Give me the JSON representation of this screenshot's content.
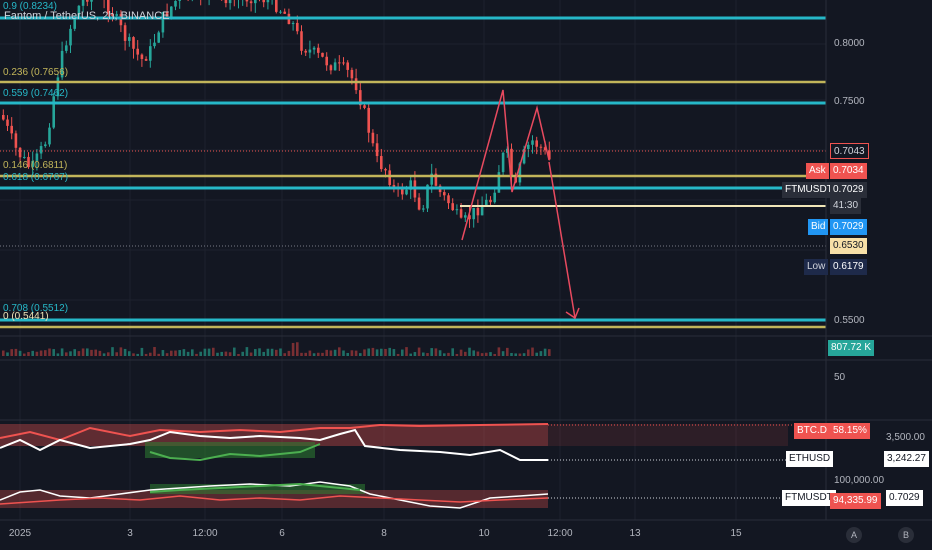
{
  "header": {
    "title": "Fantom / TetherUS, 2h, BINANCE"
  },
  "fib_labels": {
    "f09": "0.9 (0.8234)",
    "f0236": "0.236 (0.7656)",
    "f0559": "0.559 (0.7462)",
    "f0146": "0.146 (0.6811)",
    "f0618": "0.618 (0.6767)",
    "f0708": "0.708 (0.5512)",
    "f0": "0 (0.5441)"
  },
  "price_axis": {
    "ticks": [
      "0.8000",
      "0.7500",
      "0.5500"
    ],
    "last_price": "0.7043",
    "ask_label": "Ask",
    "ask_value": "0.7034",
    "symbol": "FTMUSDT",
    "symbol_price": "0.7029",
    "countdown": "41:30",
    "bid_label": "Bid",
    "bid_value": "0.7029",
    "level_value": "0.6530",
    "low_label": "Low",
    "low_value": "0.6179"
  },
  "volume": {
    "label": "807.72 K"
  },
  "rsi": {
    "tick": "50"
  },
  "compare": {
    "btcd_label": "BTC.D",
    "btcd_value": "58.15%",
    "eth_axis": "3,500.00",
    "eth_label": "ETHUSD",
    "eth_value": "3,242.27",
    "btc_axis": "100,000.00",
    "ftm_label": "FTMUSDT",
    "btc_value": "94,335.99",
    "ftm_value": "0.7029"
  },
  "time_axis": [
    "2025",
    "3",
    "12:00",
    "6",
    "8",
    "10",
    "12:00",
    "13",
    "15"
  ],
  "scale_buttons": [
    "A",
    "B"
  ],
  "colors": {
    "bg": "#131722",
    "up": "#26a69a",
    "down": "#ef5350",
    "cyan_line": "#26b8c8",
    "gold_line": "#c2b55a",
    "arrow": "#e84a5f"
  }
}
